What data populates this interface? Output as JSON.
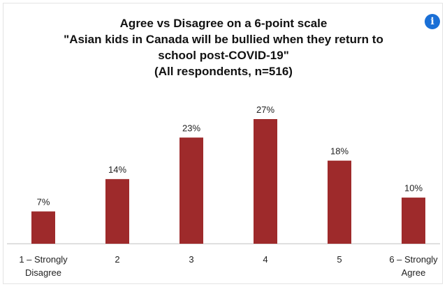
{
  "info_icon": {
    "name": "info-icon",
    "glyph": "i"
  },
  "chart_data": {
    "type": "bar",
    "title": "Agree vs Disagree on a 6-point scale",
    "subtitle_lines": [
      "\"Asian kids in Canada will be bullied when they return to",
      "school post-COVID-19\"",
      "(All respondents, n=516)"
    ],
    "categories": [
      [
        "1 – Strongly",
        "Disagree"
      ],
      [
        "2"
      ],
      [
        "3"
      ],
      [
        "4"
      ],
      [
        "5"
      ],
      [
        "6 – Strongly",
        "Agree"
      ]
    ],
    "values": [
      7,
      14,
      23,
      27,
      18,
      10
    ],
    "data_labels": [
      "7%",
      "14%",
      "23%",
      "27%",
      "18%",
      "10%"
    ],
    "ylim": [
      0,
      27
    ],
    "unit": "%",
    "bar_color": "#9e2a2b",
    "grid": false,
    "legend": "none"
  }
}
